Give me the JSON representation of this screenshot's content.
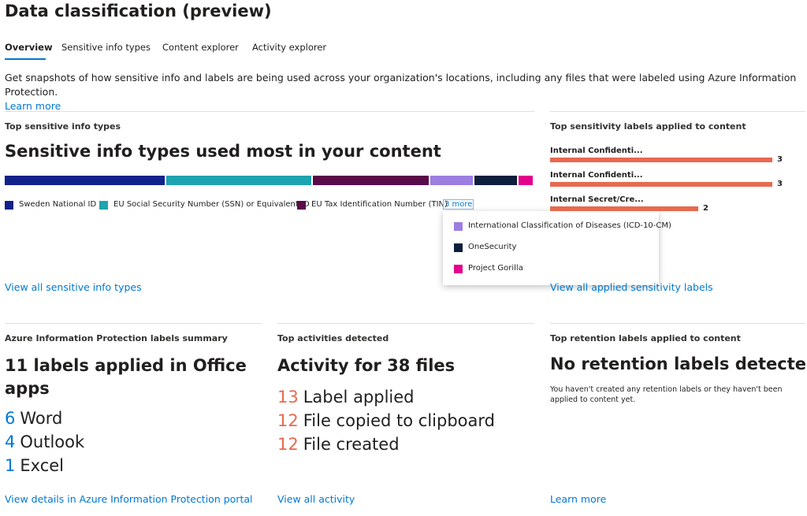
{
  "header": {
    "title": "Data classification (preview)"
  },
  "tabs": [
    "Overview",
    "Sensitive info types",
    "Content explorer",
    "Activity explorer"
  ],
  "intro": {
    "text": "Get snapshots of how sensitive info and labels are being used across your organization's locations, including any files that were labeled using Azure Information Protection.",
    "link": "Learn more"
  },
  "cards": {
    "sensitive_info": {
      "kicker": "Top sensitive info types",
      "heading": "Sensitive info types used most in your content",
      "segments": [
        {
          "name": "Sweden National ID",
          "color": "#13218a",
          "value": 30.6
        },
        {
          "name": "EU Social Security Number (SSN) or Equivalent ID",
          "color": "#1ea3b0",
          "value": 27.6
        },
        {
          "name": "EU Tax Identification Number (TIN)",
          "color": "#5a0b4a",
          "value": 22.1
        },
        {
          "name": "International Classification of Diseases (ICD-10-CM)",
          "color": "#9b7ee0",
          "value": 8.2
        },
        {
          "name": "OneSecurity",
          "color": "#0d1f3c",
          "value": 8.1
        },
        {
          "name": "Project Gorilla",
          "color": "#e3008c",
          "value": 2.7
        }
      ],
      "more": "3 more",
      "link": "View all sensitive info types"
    },
    "sensitivity_labels": {
      "kicker": "Top sensitivity labels applied to content",
      "color": "#e8694f",
      "bars": [
        {
          "label": "Internal Confidenti...",
          "value": 3
        },
        {
          "label": "Internal Confidenti...",
          "value": 3
        },
        {
          "label": "Internal Secret/Cre...",
          "value": 2
        }
      ],
      "link": "View all applied sensitivity labels"
    },
    "aip": {
      "kicker": "Azure Information Protection labels summary",
      "heading": "11 labels applied in Office apps",
      "items": [
        {
          "count": "6",
          "label": "Word"
        },
        {
          "count": "4",
          "label": "Outlook"
        },
        {
          "count": "1",
          "label": "Excel"
        }
      ],
      "link": "View details in Azure Information Protection portal"
    },
    "activities": {
      "kicker": "Top activities detected",
      "heading": "Activity for 38 files",
      "items": [
        {
          "count": "13",
          "label": "Label applied"
        },
        {
          "count": "12",
          "label": "File copied to clipboard"
        },
        {
          "count": "12",
          "label": "File created"
        }
      ],
      "link": "View all activity"
    },
    "retention": {
      "kicker": "Top retention labels applied to content",
      "heading": "No retention labels detected",
      "text": "You haven't created any retention labels or they haven't been applied to content yet.",
      "link": "Learn more"
    }
  }
}
